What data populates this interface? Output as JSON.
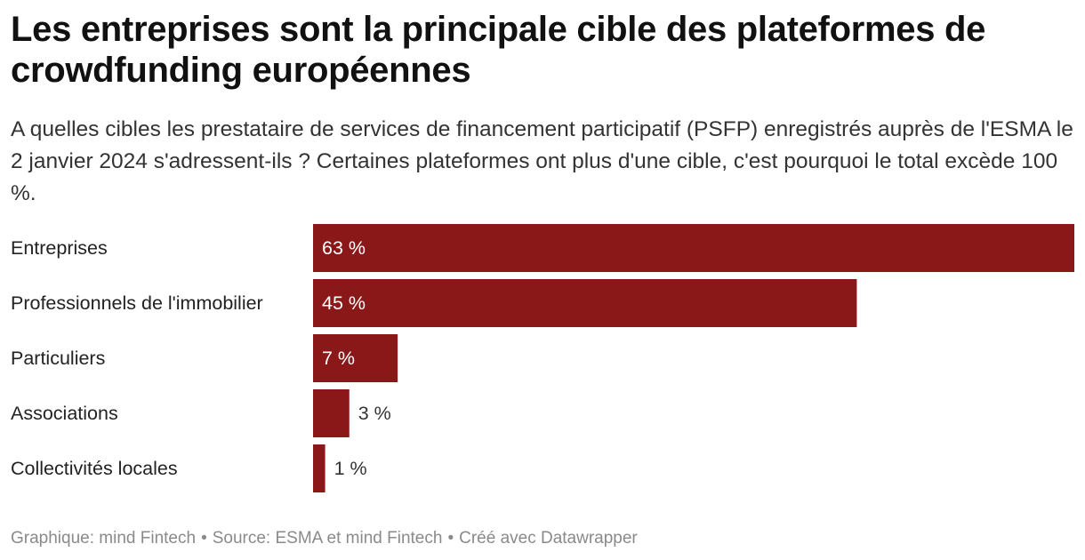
{
  "title": "Les entreprises sont la principale cible des plateformes de crowdfunding européennes",
  "subtitle": "A quelles cibles les prestataire de services de financement participatif (PSFP) enregistrés auprès de l'ESMA le 2 janvier 2024 s'adressent-ils ? Certaines plateformes ont plus d'une cible, c'est pourquoi le total excède 100 %.",
  "footer": {
    "graphic": "Graphique: mind Fintech",
    "source": "Source: ESMA et mind Fintech",
    "created": "Créé avec Datawrapper",
    "separator": "•"
  },
  "colors": {
    "bar": "#8b1818",
    "label_inside": "#ffffff",
    "label_outside": "#333333"
  },
  "chart_data": {
    "type": "bar",
    "orientation": "horizontal",
    "categories": [
      "Entreprises",
      "Professionnels de l'immobilier",
      "Particuliers",
      "Associations",
      "Collectivités locales"
    ],
    "values": [
      63,
      45,
      7,
      3,
      1
    ],
    "value_labels": [
      "63 %",
      "45 %",
      "7 %",
      "3 %",
      "1 %"
    ],
    "unit": "%",
    "xlim": [
      0,
      63
    ],
    "grid": false,
    "legend": "none"
  }
}
